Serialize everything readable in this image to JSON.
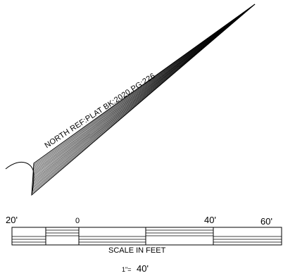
{
  "north_arrow": {
    "label": "NORTH REF:PLAT BK:2020,PG:226",
    "icon": "north-arrow-icon"
  },
  "scale_bar": {
    "ticks": [
      "20'",
      "0",
      "40'",
      "60'"
    ],
    "caption": "SCALE IN FEET",
    "ratio_left": "1\"=",
    "ratio_right": "40'",
    "colors": {
      "ink": "#000000",
      "paper": "#ffffff"
    }
  }
}
